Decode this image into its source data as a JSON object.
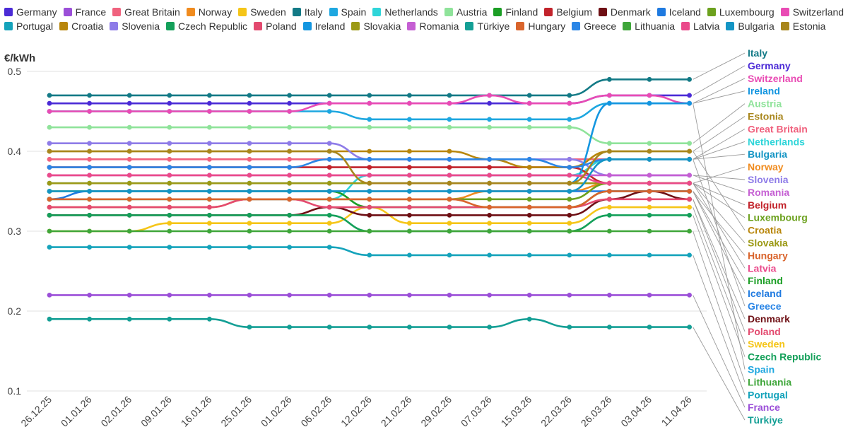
{
  "chart_data": {
    "type": "line",
    "ylabel": "€/kWh",
    "ylim": [
      0.1,
      0.5
    ],
    "yticks": [
      0.1,
      0.2,
      0.3,
      0.4,
      0.5
    ],
    "categories": [
      "26.12.25",
      "01.01.26",
      "02.01.26",
      "09.01.26",
      "16.01.26",
      "25.01.26",
      "01.02.26",
      "06.02.26",
      "12.02.26",
      "21.02.26",
      "29.02.26",
      "07.03.26",
      "15.03.26",
      "22.03.26",
      "26.03.26",
      "03.04.26",
      "11.04.26"
    ],
    "legend_order": [
      "Germany",
      "France",
      "Great Britain",
      "Norway",
      "Sweden",
      "Italy",
      "Spain",
      "Netherlands",
      "Austria",
      "Finland",
      "Belgium",
      "Denmark",
      "Iceland",
      "Luxembourg",
      "Switzerland",
      "Portugal",
      "Croatia",
      "Slovenia",
      "Czech Republic",
      "Poland",
      "Ireland",
      "Slovakia",
      "Romania",
      "Türkiye",
      "Hungary",
      "Greece",
      "Lithuania",
      "Latvia",
      "Bulgaria",
      "Estonia"
    ],
    "end_label_order": [
      "Italy",
      "Germany",
      "Switzerland",
      "Ireland",
      "Austria",
      "Estonia",
      "Great Britain",
      "Netherlands",
      "Bulgaria",
      "Norway",
      "Slovenia",
      "Romania",
      "Belgium",
      "Luxembourg",
      "Croatia",
      "Slovakia",
      "Hungary",
      "Latvia",
      "Finland",
      "Iceland",
      "Greece",
      "Denmark",
      "Poland",
      "Sweden",
      "Czech Republic",
      "Spain",
      "Lithuania",
      "Portugal",
      "France",
      "Türkiye"
    ],
    "series": [
      {
        "name": "Germany",
        "color": "#4b2bd6",
        "values": [
          0.46,
          0.46,
          0.46,
          0.46,
          0.46,
          0.46,
          0.46,
          0.46,
          0.46,
          0.46,
          0.46,
          0.46,
          0.46,
          0.46,
          0.47,
          0.47,
          0.47
        ]
      },
      {
        "name": "France",
        "color": "#9b4fd8",
        "values": [
          0.22,
          0.22,
          0.22,
          0.22,
          0.22,
          0.22,
          0.22,
          0.22,
          0.22,
          0.22,
          0.22,
          0.22,
          0.22,
          0.22,
          0.22,
          0.22,
          0.22
        ]
      },
      {
        "name": "Great Britain",
        "color": "#f0627e",
        "values": [
          0.39,
          0.39,
          0.39,
          0.39,
          0.39,
          0.39,
          0.39,
          0.39,
          0.39,
          0.39,
          0.39,
          0.39,
          0.39,
          0.39,
          0.39,
          0.39,
          0.39
        ]
      },
      {
        "name": "Norway",
        "color": "#f08b1e",
        "values": [
          0.33,
          0.33,
          0.33,
          0.33,
          0.33,
          0.34,
          0.34,
          0.34,
          0.34,
          0.34,
          0.34,
          0.35,
          0.35,
          0.35,
          0.36,
          0.36,
          0.36
        ]
      },
      {
        "name": "Sweden",
        "color": "#f5c518",
        "values": [
          0.3,
          0.3,
          0.3,
          0.31,
          0.31,
          0.31,
          0.31,
          0.31,
          0.33,
          0.31,
          0.31,
          0.31,
          0.31,
          0.31,
          0.33,
          0.33,
          0.33
        ]
      },
      {
        "name": "Italy",
        "color": "#137a86",
        "values": [
          0.47,
          0.47,
          0.47,
          0.47,
          0.47,
          0.47,
          0.47,
          0.47,
          0.47,
          0.47,
          0.47,
          0.47,
          0.47,
          0.47,
          0.49,
          0.49,
          0.49
        ]
      },
      {
        "name": "Spain",
        "color": "#1ea7e0",
        "values": [
          0.45,
          0.45,
          0.45,
          0.45,
          0.45,
          0.45,
          0.45,
          0.45,
          0.44,
          0.44,
          0.44,
          0.44,
          0.44,
          0.44,
          0.46,
          0.46,
          0.46
        ]
      },
      {
        "name": "Netherlands",
        "color": "#2fd5d9",
        "values": [
          0.34,
          0.34,
          0.34,
          0.34,
          0.34,
          0.34,
          0.34,
          0.34,
          0.37,
          0.37,
          0.37,
          0.37,
          0.37,
          0.37,
          0.39,
          0.39,
          0.39
        ]
      },
      {
        "name": "Austria",
        "color": "#8fe39a",
        "values": [
          0.43,
          0.43,
          0.43,
          0.43,
          0.43,
          0.43,
          0.43,
          0.43,
          0.43,
          0.43,
          0.43,
          0.43,
          0.43,
          0.43,
          0.41,
          0.41,
          0.41
        ]
      },
      {
        "name": "Finland",
        "color": "#1b9e25",
        "values": [
          0.35,
          0.35,
          0.35,
          0.35,
          0.35,
          0.35,
          0.35,
          0.35,
          0.33,
          0.33,
          0.33,
          0.33,
          0.33,
          0.33,
          0.35,
          0.35,
          0.35
        ]
      },
      {
        "name": "Belgium",
        "color": "#c2232b",
        "values": [
          0.38,
          0.38,
          0.38,
          0.38,
          0.38,
          0.38,
          0.38,
          0.38,
          0.38,
          0.38,
          0.38,
          0.38,
          0.38,
          0.38,
          0.36,
          0.36,
          0.36
        ]
      },
      {
        "name": "Denmark",
        "color": "#6e0f14",
        "values": [
          0.32,
          0.32,
          0.32,
          0.32,
          0.32,
          0.32,
          0.32,
          0.33,
          0.32,
          0.32,
          0.32,
          0.32,
          0.32,
          0.32,
          0.34,
          0.35,
          0.34
        ]
      },
      {
        "name": "Iceland",
        "color": "#1f7ae0",
        "values": [
          0.34,
          0.35,
          0.35,
          0.35,
          0.35,
          0.35,
          0.35,
          0.35,
          0.35,
          0.35,
          0.35,
          0.35,
          0.35,
          0.35,
          0.35,
          0.35,
          0.35
        ]
      },
      {
        "name": "Luxembourg",
        "color": "#6ca11e",
        "values": [
          0.34,
          0.34,
          0.34,
          0.34,
          0.34,
          0.34,
          0.34,
          0.34,
          0.34,
          0.34,
          0.34,
          0.34,
          0.34,
          0.34,
          0.36,
          0.36,
          0.36
        ]
      },
      {
        "name": "Switzerland",
        "color": "#e94bb4",
        "values": [
          0.45,
          0.45,
          0.45,
          0.45,
          0.45,
          0.45,
          0.45,
          0.46,
          0.46,
          0.46,
          0.46,
          0.47,
          0.46,
          0.46,
          0.47,
          0.47,
          0.46
        ]
      },
      {
        "name": "Portugal",
        "color": "#15a3bb",
        "values": [
          0.28,
          0.28,
          0.28,
          0.28,
          0.28,
          0.28,
          0.28,
          0.28,
          0.27,
          0.27,
          0.27,
          0.27,
          0.27,
          0.27,
          0.27,
          0.27,
          0.27
        ]
      },
      {
        "name": "Croatia",
        "color": "#b8860b",
        "values": [
          0.4,
          0.4,
          0.4,
          0.4,
          0.4,
          0.4,
          0.4,
          0.4,
          0.4,
          0.4,
          0.4,
          0.39,
          0.38,
          0.38,
          0.4,
          0.4,
          0.4
        ]
      },
      {
        "name": "Slovenia",
        "color": "#8e7ce8",
        "values": [
          0.41,
          0.41,
          0.41,
          0.41,
          0.41,
          0.41,
          0.41,
          0.41,
          0.39,
          0.39,
          0.39,
          0.39,
          0.39,
          0.39,
          0.37,
          0.37,
          0.37
        ]
      },
      {
        "name": "Czech Republic",
        "color": "#14a05a",
        "values": [
          0.32,
          0.32,
          0.32,
          0.32,
          0.32,
          0.32,
          0.32,
          0.32,
          0.3,
          0.3,
          0.3,
          0.3,
          0.3,
          0.3,
          0.32,
          0.32,
          0.32
        ]
      },
      {
        "name": "Poland",
        "color": "#e34a6f",
        "values": [
          0.33,
          0.33,
          0.33,
          0.33,
          0.33,
          0.34,
          0.34,
          0.33,
          0.33,
          0.33,
          0.33,
          0.33,
          0.33,
          0.33,
          0.34,
          0.34,
          0.34
        ]
      },
      {
        "name": "Ireland",
        "color": "#1496e0",
        "values": [
          0.36,
          0.36,
          0.36,
          0.36,
          0.36,
          0.36,
          0.36,
          0.36,
          0.36,
          0.36,
          0.36,
          0.36,
          0.36,
          0.36,
          0.46,
          0.46,
          0.46
        ]
      },
      {
        "name": "Slovakia",
        "color": "#9c9a16",
        "values": [
          0.36,
          0.36,
          0.36,
          0.36,
          0.36,
          0.36,
          0.36,
          0.36,
          0.36,
          0.36,
          0.36,
          0.36,
          0.36,
          0.36,
          0.36,
          0.36,
          0.36
        ]
      },
      {
        "name": "Romania",
        "color": "#c55fd3",
        "values": [
          0.37,
          0.37,
          0.37,
          0.37,
          0.37,
          0.37,
          0.37,
          0.37,
          0.37,
          0.37,
          0.37,
          0.37,
          0.37,
          0.37,
          0.37,
          0.37,
          0.37
        ]
      },
      {
        "name": "Türkiye",
        "color": "#149f95",
        "values": [
          0.19,
          0.19,
          0.19,
          0.19,
          0.19,
          0.18,
          0.18,
          0.18,
          0.18,
          0.18,
          0.18,
          0.18,
          0.19,
          0.18,
          0.18,
          0.18,
          0.18
        ]
      },
      {
        "name": "Hungary",
        "color": "#d9642c",
        "values": [
          0.34,
          0.34,
          0.34,
          0.34,
          0.34,
          0.34,
          0.34,
          0.34,
          0.34,
          0.34,
          0.34,
          0.33,
          0.33,
          0.33,
          0.35,
          0.35,
          0.35
        ]
      },
      {
        "name": "Greece",
        "color": "#2b86e6",
        "values": [
          0.38,
          0.38,
          0.38,
          0.38,
          0.38,
          0.38,
          0.38,
          0.39,
          0.39,
          0.39,
          0.39,
          0.39,
          0.39,
          0.38,
          0.39,
          0.39,
          0.39
        ]
      },
      {
        "name": "Lithuania",
        "color": "#3fa63a",
        "values": [
          0.3,
          0.3,
          0.3,
          0.3,
          0.3,
          0.3,
          0.3,
          0.3,
          0.3,
          0.3,
          0.3,
          0.3,
          0.3,
          0.3,
          0.3,
          0.3,
          0.3
        ]
      },
      {
        "name": "Latvia",
        "color": "#ea4a8b",
        "values": [
          0.37,
          0.37,
          0.37,
          0.37,
          0.37,
          0.37,
          0.37,
          0.37,
          0.37,
          0.37,
          0.37,
          0.37,
          0.37,
          0.37,
          0.36,
          0.36,
          0.36
        ]
      },
      {
        "name": "Bulgaria",
        "color": "#1495c4",
        "values": [
          0.35,
          0.35,
          0.35,
          0.35,
          0.35,
          0.35,
          0.35,
          0.35,
          0.35,
          0.35,
          0.35,
          0.35,
          0.35,
          0.35,
          0.39,
          0.39,
          0.39
        ]
      },
      {
        "name": "Estonia",
        "color": "#a8861c",
        "values": [
          0.4,
          0.4,
          0.4,
          0.4,
          0.4,
          0.4,
          0.4,
          0.4,
          0.36,
          0.36,
          0.36,
          0.36,
          0.36,
          0.36,
          0.4,
          0.4,
          0.4
        ]
      }
    ]
  }
}
